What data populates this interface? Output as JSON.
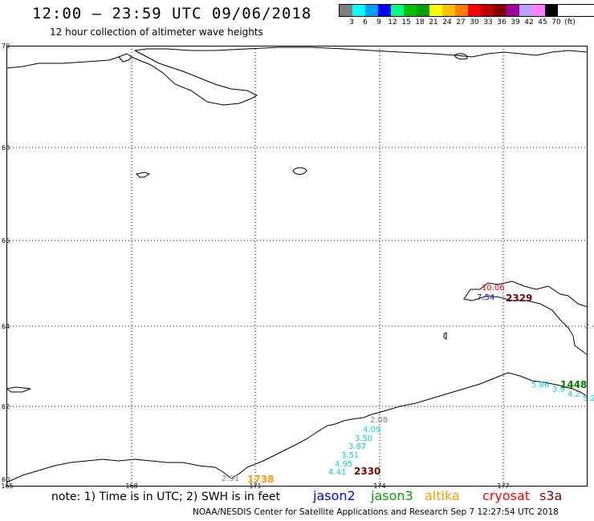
{
  "header": {
    "title": "12:00 – 23:59 UTC 09/06/2018",
    "subtitle": "12 hour collection of altimeter wave heights"
  },
  "scale": {
    "colors": [
      "#808080",
      "#00ffff",
      "#00a0ff",
      "#0000ff",
      "#00ff80",
      "#00c000",
      "#00a000",
      "#ffff00",
      "#ffc000",
      "#ff8000",
      "#ff0000",
      "#c00000",
      "#800000",
      "#a000a0",
      "#c0a0ff",
      "#ff80ff",
      "#000000"
    ],
    "labels": [
      "3",
      "6",
      "9",
      "12",
      "15",
      "18",
      "21",
      "24",
      "27",
      "30",
      "33",
      "36",
      "39",
      "42",
      "45",
      "70",
      "(ft)"
    ]
  },
  "axes": {
    "lat_labels": [
      "70",
      "68",
      "66",
      "64",
      "62",
      "60"
    ],
    "lon_labels": [
      "165",
      "168",
      "171",
      "174",
      "177"
    ]
  },
  "wave_heights": [
    {
      "text": "2.08",
      "color": "#808080"
    },
    {
      "text": "4.09",
      "color": "#00d0d0"
    },
    {
      "text": "3.50",
      "color": "#00d0d0"
    },
    {
      "text": "3.87",
      "color": "#00d0d0"
    },
    {
      "text": "3.51",
      "color": "#00d0d0"
    },
    {
      "text": "4.95",
      "color": "#00d0d0"
    },
    {
      "text": "4.41",
      "color": "#00d0d0"
    },
    {
      "text": "10.06",
      "color": "#ff0000"
    },
    {
      "text": "7.54",
      "color": "#0000ff"
    },
    {
      "text": "2.4",
      "color": "#808080"
    },
    {
      "text": "5.86",
      "color": "#00d0d0"
    },
    {
      "text": "3.9",
      "color": "#00d0d0"
    },
    {
      "text": "4.2",
      "color": "#00d0d0"
    },
    {
      "text": "5.2",
      "color": "#00d0d0"
    },
    {
      "text": "2.91",
      "color": "#808080"
    }
  ],
  "pass_times": [
    {
      "text": "1738",
      "color": "#ff9900"
    },
    {
      "text": "2330",
      "color": "#800000"
    },
    {
      "text": "2329",
      "color": "#800000"
    },
    {
      "text": "1448",
      "color": "#008000"
    }
  ],
  "note": "note: 1) Time is in UTC; 2) SWH is in feet",
  "legend": [
    {
      "text": "jason2",
      "color": "#0000ff"
    },
    {
      "text": "jason3",
      "color": "#00a000"
    },
    {
      "text": "altika",
      "color": "#ff9900"
    },
    {
      "text": "cryosat",
      "color": "#ff0000"
    },
    {
      "text": "s3a",
      "color": "#800000"
    }
  ],
  "footer": "NOAA/NESDIS Center for Satellite Applications and Research    Sep  7 12:27:54 UTC 2018"
}
